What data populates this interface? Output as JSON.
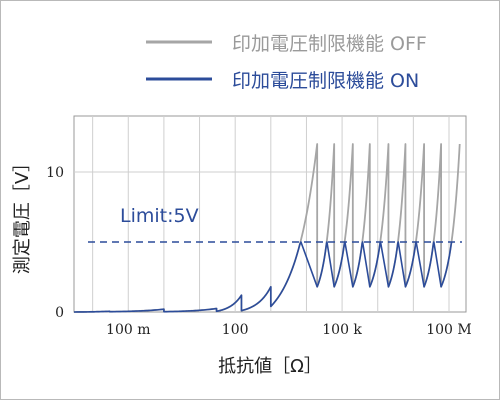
{
  "chart_data": {
    "type": "line",
    "title": "",
    "xlabel": "抵抗値［Ω］",
    "ylabel": "測定電圧［V］",
    "x_scale": "log",
    "xlim": [
      0.003,
      300000000
    ],
    "ylim": [
      0,
      14
    ],
    "grid": true,
    "legend_position": "top",
    "x_ticks": [
      {
        "value": 0.1,
        "label": "100 m"
      },
      {
        "value": 100,
        "label": "100"
      },
      {
        "value": 100000,
        "label": "100 k"
      },
      {
        "value": 100000000,
        "label": "100 M"
      }
    ],
    "y_ticks": [
      {
        "value": 0,
        "label": "0"
      },
      {
        "value": 10,
        "label": "10"
      }
    ],
    "series": [
      {
        "name": "印加電圧制限機能 OFF",
        "color": "#a6a6a6",
        "segments": [
          {
            "x0": 0.003,
            "x1": 0.03,
            "y0": 0.0,
            "y1": 0.05
          },
          {
            "x0": 0.03,
            "x1": 1.0,
            "y0": 0.02,
            "y1": 0.2
          },
          {
            "x0": 1.0,
            "x1": 30,
            "y0": 0.02,
            "y1": 0.25
          },
          {
            "x0": 30,
            "x1": 150,
            "y0": 0.05,
            "y1": 1.2
          },
          {
            "x0": 150,
            "x1": 1000,
            "y0": 0.1,
            "y1": 1.8
          },
          {
            "x0": 1000,
            "x1": 20000,
            "y0": 0.4,
            "y1": 12.0
          },
          {
            "x0": 20000,
            "x1": 60000,
            "y0": 1.8,
            "y1": 12.0
          },
          {
            "x0": 60000,
            "x1": 200000,
            "y0": 1.8,
            "y1": 12.0
          },
          {
            "x0": 200000,
            "x1": 600000,
            "y0": 1.8,
            "y1": 12.0
          },
          {
            "x0": 600000,
            "x1": 2000000,
            "y0": 1.8,
            "y1": 12.0
          },
          {
            "x0": 2000000,
            "x1": 6000000,
            "y0": 1.8,
            "y1": 12.0
          },
          {
            "x0": 6000000,
            "x1": 20000000,
            "y0": 1.8,
            "y1": 12.0
          },
          {
            "x0": 20000000,
            "x1": 60000000,
            "y0": 1.8,
            "y1": 12.0
          },
          {
            "x0": 60000000,
            "x1": 200000000,
            "y0": 1.8,
            "y1": 12.0
          }
        ]
      },
      {
        "name": "印加電圧制限機能 ON",
        "color": "#2c4c9a",
        "clip_at": 5,
        "segments": [
          {
            "x0": 0.003,
            "x1": 0.03,
            "y0": 0.0,
            "y1": 0.05
          },
          {
            "x0": 0.03,
            "x1": 1.0,
            "y0": 0.02,
            "y1": 0.2
          },
          {
            "x0": 1.0,
            "x1": 30,
            "y0": 0.02,
            "y1": 0.25
          },
          {
            "x0": 30,
            "x1": 150,
            "y0": 0.05,
            "y1": 1.2
          },
          {
            "x0": 150,
            "x1": 1000,
            "y0": 0.1,
            "y1": 1.8
          },
          {
            "x0": 1000,
            "x1": 20000,
            "y0": 0.4,
            "y1": 12.0
          },
          {
            "x0": 20000,
            "x1": 60000,
            "y0": 1.8,
            "y1": 12.0
          },
          {
            "x0": 60000,
            "x1": 200000,
            "y0": 1.8,
            "y1": 12.0
          },
          {
            "x0": 200000,
            "x1": 600000,
            "y0": 1.8,
            "y1": 12.0
          },
          {
            "x0": 600000,
            "x1": 2000000,
            "y0": 1.8,
            "y1": 12.0
          },
          {
            "x0": 2000000,
            "x1": 6000000,
            "y0": 1.8,
            "y1": 12.0
          },
          {
            "x0": 6000000,
            "x1": 20000000,
            "y0": 1.8,
            "y1": 12.0
          },
          {
            "x0": 20000000,
            "x1": 60000000,
            "y0": 1.8,
            "y1": 12.0
          },
          {
            "x0": 60000000,
            "x1": 200000000,
            "y0": 1.8,
            "y1": 12.0
          }
        ]
      }
    ],
    "annotations": [
      {
        "type": "hline",
        "y": 5,
        "style": "dashed",
        "color": "#2c4c9a",
        "label": "Limit:5V"
      }
    ]
  }
}
